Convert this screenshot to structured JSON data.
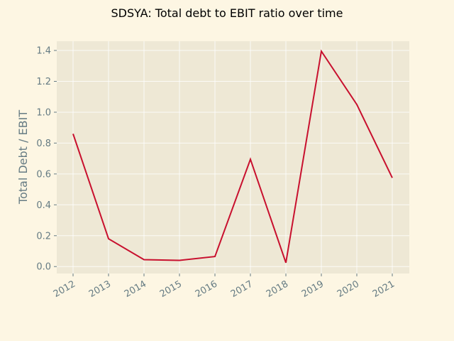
{
  "chart_data": {
    "type": "line",
    "title": "SDSYA: Total debt to EBIT ratio over time",
    "xlabel": "",
    "ylabel": "Total Debt / EBIT",
    "x": [
      "2012",
      "2013",
      "2014",
      "2015",
      "2016",
      "2017",
      "2018",
      "2019",
      "2020",
      "2021"
    ],
    "series": [
      {
        "values": [
          0.86,
          0.18,
          0.045,
          0.04,
          0.065,
          0.695,
          0.025,
          1.395,
          1.05,
          0.575
        ],
        "color": "#c8102e"
      }
    ],
    "ylim": [
      -0.045,
      1.46
    ],
    "yticks": [
      0.0,
      0.2,
      0.4,
      0.6,
      0.8,
      1.0,
      1.2,
      1.4
    ],
    "ytick_labels": [
      "0.0",
      "0.2",
      "0.4",
      "0.6",
      "0.8",
      "1.0",
      "1.2",
      "1.4"
    ],
    "grid": true,
    "legend": "none",
    "colors": {
      "page_background": "#fdf6e3",
      "plot_background": "#eee8d5",
      "grid": "#ffffff",
      "tick_text": "#657b83",
      "title_text": "#000000"
    }
  }
}
